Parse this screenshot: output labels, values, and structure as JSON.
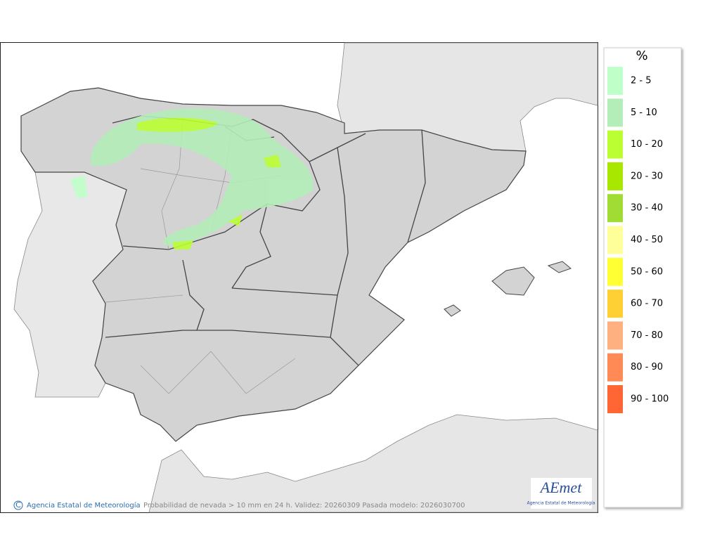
{
  "map": {
    "caption": "Probabilidad de nevada > 10 mm en 24 h. Validez: 20260309 Pasada modelo: 2026030700",
    "copyright": {
      "symbol": "C",
      "text": "Agencia Estatal de Meteorología"
    },
    "logo": {
      "name": "AEmet",
      "subtitle": "Agencia Estatal de Meteorología"
    }
  },
  "legend": {
    "title": "%",
    "items": [
      {
        "label": "2 - 5",
        "color": "#bfffc8"
      },
      {
        "label": "5 - 10",
        "color": "#b3edb8"
      },
      {
        "label": "10 - 20",
        "color": "#bbff33"
      },
      {
        "label": "20 - 30",
        "color": "#a8e800"
      },
      {
        "label": "30 - 40",
        "color": "#a0dc33"
      },
      {
        "label": "40 - 50",
        "color": "#ffff99"
      },
      {
        "label": "50 - 60",
        "color": "#ffff33"
      },
      {
        "label": "60 - 70",
        "color": "#ffd033"
      },
      {
        "label": "70 - 80",
        "color": "#ffb080"
      },
      {
        "label": "80 - 90",
        "color": "#ff8a55"
      },
      {
        "label": "90 - 100",
        "color": "#ff6633"
      }
    ]
  }
}
